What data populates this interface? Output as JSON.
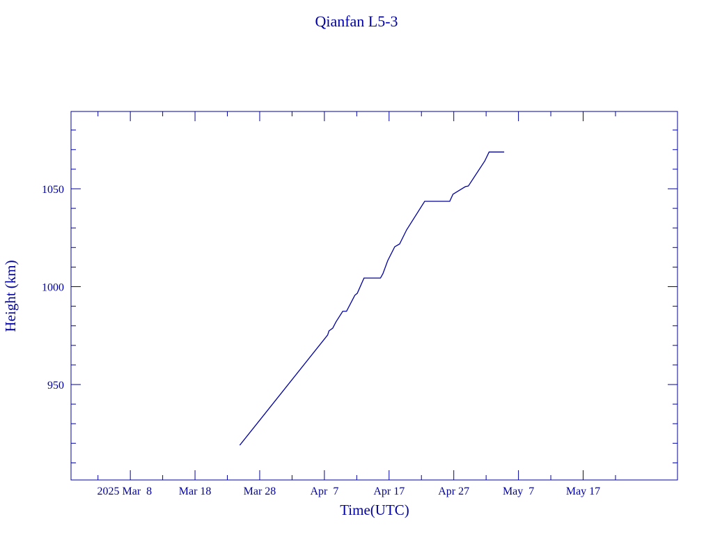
{
  "chart_data": {
    "type": "line",
    "title": "Qianfan L5-3",
    "xlabel": "Time(UTC)",
    "ylabel": "Height (km)",
    "color": "#0000a0",
    "x": [
      "2025-03-24T22:00",
      "2025-04-07T12:00",
      "2025-04-07T17:00",
      "2025-04-08T07:00",
      "2025-04-08T19:00",
      "2025-04-09T20:00",
      "2025-04-10T10:00",
      "2025-04-11T17:00",
      "2025-04-12T02:00",
      "2025-04-13T03:00",
      "2025-04-15T16:00",
      "2025-04-16T01:00",
      "2025-04-16T19:00",
      "2025-04-17T21:00",
      "2025-04-18T15:00",
      "2025-04-19T17:00",
      "2025-04-22T12:00",
      "2025-04-26T09:00",
      "2025-04-26T21:00",
      "2025-04-28T19:00",
      "2025-04-29T06:00",
      "2025-05-01T19:00",
      "2025-05-02T11:00",
      "2025-05-04T19:00"
    ],
    "series": [
      {
        "name": "Height",
        "values": [
          919,
          975.3,
          977.4,
          978.8,
          982,
          987.4,
          987.4,
          995.6,
          996.6,
          1004.4,
          1004.4,
          1006.6,
          1013.3,
          1020.4,
          1021.8,
          1029,
          1043.6,
          1043.6,
          1047.2,
          1051.1,
          1051.4,
          1064.2,
          1068.8,
          1068.8
        ]
      }
    ],
    "xlim": [
      "2025-02-26T20:00",
      "2025-05-31T14:00"
    ],
    "xticks": [
      {
        "value": "2025-03-08T00:00",
        "label": "2025 Mar  8"
      },
      {
        "value": "2025-03-18T00:00",
        "label": "Mar 18"
      },
      {
        "value": "2025-03-28T00:00",
        "label": "Mar 28"
      },
      {
        "value": "2025-04-07T00:00",
        "label": "Apr  7"
      },
      {
        "value": "2025-04-17T00:00",
        "label": "Apr 17"
      },
      {
        "value": "2025-04-27T00:00",
        "label": "Apr 27"
      },
      {
        "value": "2025-05-07T00:00",
        "label": "May  7"
      },
      {
        "value": "2025-05-17T00:00",
        "label": "May 17"
      }
    ],
    "xticks_minor": [
      "2025-03-03T00:00",
      "2025-03-13T00:00",
      "2025-03-23T00:00",
      "2025-04-02T00:00",
      "2025-04-12T00:00",
      "2025-04-22T00:00",
      "2025-05-02T00:00",
      "2025-05-12T00:00",
      "2025-05-22T00:00"
    ],
    "ylim": [
      901.25,
      1089.5
    ],
    "yticks": [
      950,
      1000,
      1050
    ],
    "yticks_minor": [
      910,
      920,
      930,
      940,
      960,
      970,
      980,
      990,
      1010,
      1020,
      1030,
      1040,
      1060,
      1070,
      1080
    ]
  }
}
